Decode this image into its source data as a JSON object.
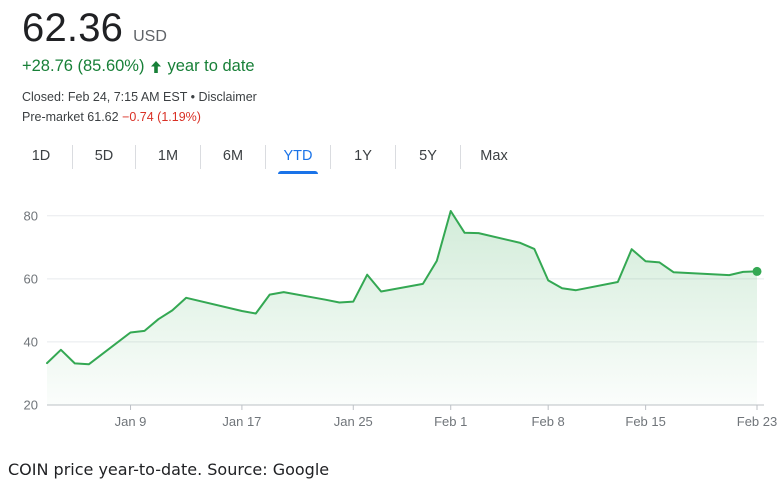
{
  "quote": {
    "price": "62.36",
    "currency": "USD",
    "change": "+28.76 (85.60%)",
    "period": "year to date",
    "closed_text": "Closed: Feb 24, 7:15 AM EST",
    "bullet": " • ",
    "disclaimer": "Disclaimer",
    "premarket_label": "Pre-market 61.62",
    "premarket_change": "−0.74 (1.19%)"
  },
  "tabs": [
    {
      "label": "1D"
    },
    {
      "label": "5D"
    },
    {
      "label": "1M"
    },
    {
      "label": "6M"
    },
    {
      "label": "YTD",
      "active": true
    },
    {
      "label": "1Y"
    },
    {
      "label": "5Y"
    },
    {
      "label": "Max"
    }
  ],
  "colors": {
    "line": "#34a853",
    "fill_top": "#e6f4ea",
    "positive": "#188038",
    "negative": "#d93025",
    "accent": "#1a73e8"
  },
  "chart_data": {
    "type": "area",
    "title": "",
    "xlabel": "",
    "ylabel": "",
    "ylim": [
      20,
      85
    ],
    "yticks": [
      20,
      40,
      60,
      80
    ],
    "grid": true,
    "x_ticks": [
      {
        "label": "Jan 9",
        "date": "2023-01-09"
      },
      {
        "label": "Jan 17",
        "date": "2023-01-17"
      },
      {
        "label": "Jan 25",
        "date": "2023-01-25"
      },
      {
        "label": "Feb 1",
        "date": "2023-02-01"
      },
      {
        "label": "Feb 8",
        "date": "2023-02-08"
      },
      {
        "label": "Feb 15",
        "date": "2023-02-15"
      },
      {
        "label": "Feb 23",
        "date": "2023-02-23"
      }
    ],
    "series": [
      {
        "points": [
          {
            "x": "2023-01-03",
            "y": 33.3
          },
          {
            "x": "2023-01-04",
            "y": 37.5
          },
          {
            "x": "2023-01-05",
            "y": 33.2
          },
          {
            "x": "2023-01-06",
            "y": 32.9
          },
          {
            "x": "2023-01-09",
            "y": 43.0
          },
          {
            "x": "2023-01-10",
            "y": 43.5
          },
          {
            "x": "2023-01-11",
            "y": 47.2
          },
          {
            "x": "2023-01-12",
            "y": 50.0
          },
          {
            "x": "2023-01-13",
            "y": 54.0
          },
          {
            "x": "2023-01-17",
            "y": 49.8
          },
          {
            "x": "2023-01-18",
            "y": 49.0
          },
          {
            "x": "2023-01-19",
            "y": 55.0
          },
          {
            "x": "2023-01-20",
            "y": 55.8
          },
          {
            "x": "2023-01-23",
            "y": 53.4
          },
          {
            "x": "2023-01-24",
            "y": 52.5
          },
          {
            "x": "2023-01-25",
            "y": 52.8
          },
          {
            "x": "2023-01-26",
            "y": 61.3
          },
          {
            "x": "2023-01-27",
            "y": 56.0
          },
          {
            "x": "2023-01-30",
            "y": 58.4
          },
          {
            "x": "2023-01-31",
            "y": 65.7
          },
          {
            "x": "2023-02-01",
            "y": 81.5
          },
          {
            "x": "2023-02-02",
            "y": 74.6
          },
          {
            "x": "2023-02-03",
            "y": 74.5
          },
          {
            "x": "2023-02-06",
            "y": 71.4
          },
          {
            "x": "2023-02-07",
            "y": 69.5
          },
          {
            "x": "2023-02-08",
            "y": 59.5
          },
          {
            "x": "2023-02-09",
            "y": 57.0
          },
          {
            "x": "2023-02-10",
            "y": 56.4
          },
          {
            "x": "2023-02-13",
            "y": 59.0
          },
          {
            "x": "2023-02-14",
            "y": 69.4
          },
          {
            "x": "2023-02-15",
            "y": 65.6
          },
          {
            "x": "2023-02-16",
            "y": 65.2
          },
          {
            "x": "2023-02-17",
            "y": 62.1
          },
          {
            "x": "2023-02-21",
            "y": 61.2
          },
          {
            "x": "2023-02-22",
            "y": 62.2
          },
          {
            "x": "2023-02-23",
            "y": 62.36
          }
        ]
      }
    ]
  },
  "caption": "COIN price year-to-date. Source: Google"
}
